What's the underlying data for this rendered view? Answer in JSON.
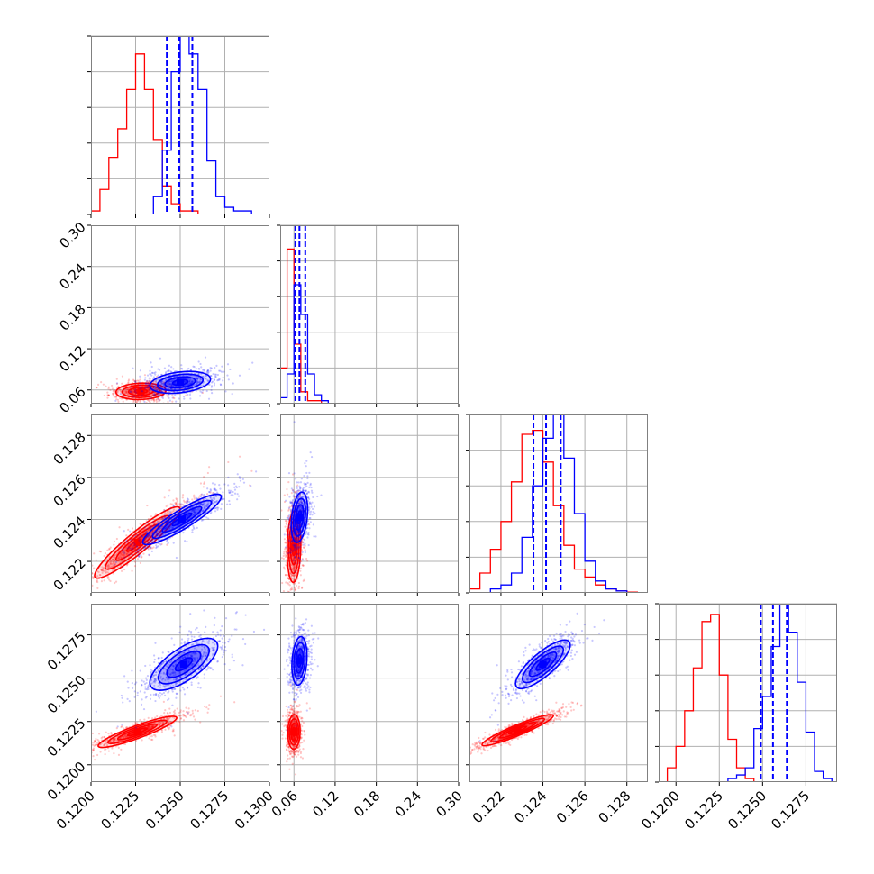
{
  "colors": {
    "red": "#ff0000",
    "blue": "#0000ff",
    "grid": "#b0b0b0",
    "frame": "#808080"
  },
  "chart_data": {
    "type": "scatter",
    "description_kind": "corner plot",
    "title": "",
    "n_params": 4,
    "grid": true,
    "series": [
      {
        "name": "",
        "color": "#ff0000",
        "quantile_lines": false
      },
      {
        "name": "",
        "color": "#0000ff",
        "quantile_lines": true
      }
    ],
    "params": [
      {
        "range": [
          0.12,
          0.13
        ],
        "ticks": [
          0.12,
          0.1225,
          0.125,
          0.1275,
          0.13
        ],
        "tick_labels": [
          "0.1200",
          "0.1225",
          "0.1250",
          "0.1275",
          "0.1300"
        ]
      },
      {
        "range": [
          0.04,
          0.3
        ],
        "ticks": [
          0.06,
          0.12,
          0.18,
          0.24,
          0.3
        ],
        "tick_labels": [
          "0.06",
          "0.12",
          "0.18",
          "0.24",
          "0.30"
        ]
      },
      {
        "range": [
          0.1205,
          0.129
        ],
        "ticks": [
          0.122,
          0.124,
          0.126,
          0.128
        ],
        "tick_labels": [
          "0.122",
          "0.124",
          "0.126",
          "0.128"
        ]
      },
      {
        "range": [
          0.119,
          0.1293
        ],
        "ticks": [
          0.12,
          0.1225,
          0.125,
          0.1275
        ],
        "tick_labels": [
          "0.1200",
          "0.1225",
          "0.1250",
          "0.1275"
        ]
      }
    ],
    "diagonal_histograms": [
      {
        "param": 0,
        "ylim_max": 50,
        "red": {
          "edges": [
            0.12,
            0.1205,
            0.121,
            0.1215,
            0.122,
            0.1225,
            0.123,
            0.1235,
            0.124,
            0.1245,
            0.125,
            0.1255,
            0.126,
            0.1265
          ],
          "counts": [
            1,
            7,
            16,
            24,
            35,
            45,
            35,
            21,
            8,
            3,
            1,
            1,
            0
          ]
        },
        "blue": {
          "edges": [
            0.1235,
            0.124,
            0.1245,
            0.125,
            0.1255,
            0.126,
            0.1265,
            0.127,
            0.1275,
            0.128,
            0.1285,
            0.129,
            0.1295
          ],
          "counts": [
            5,
            18,
            40,
            52,
            45,
            35,
            15,
            5,
            2,
            1,
            1,
            0
          ]
        },
        "blue_quantiles": [
          0.12425,
          0.12495,
          0.12568
        ]
      },
      {
        "param": 1,
        "ylim_max": 60,
        "red": {
          "edges": [
            0.04,
            0.05,
            0.06,
            0.07,
            0.08,
            0.09,
            0.1,
            0.11,
            0.12,
            0.13
          ],
          "counts": [
            12,
            52,
            20,
            4,
            1,
            1,
            0,
            0,
            0
          ]
        },
        "blue": {
          "edges": [
            0.04,
            0.05,
            0.06,
            0.07,
            0.08,
            0.09,
            0.1,
            0.11,
            0.12,
            0.13
          ],
          "counts": [
            2,
            10,
            40,
            30,
            10,
            3,
            1,
            0,
            0
          ]
        },
        "blue_quantiles": [
          0.062,
          0.068,
          0.0765
        ]
      },
      {
        "param": 2,
        "ylim_max": 45,
        "red": {
          "edges": [
            0.1205,
            0.121,
            0.1215,
            0.122,
            0.1225,
            0.123,
            0.1235,
            0.124,
            0.1245,
            0.125,
            0.1255,
            0.126,
            0.1265,
            0.127,
            0.1275,
            0.128,
            0.1285
          ],
          "counts": [
            1,
            5,
            11,
            18,
            28,
            40,
            41,
            33,
            22,
            12,
            6,
            4,
            2,
            1,
            0.5,
            0.2
          ]
        },
        "blue": {
          "edges": [
            0.1205,
            0.121,
            0.1215,
            0.122,
            0.1225,
            0.123,
            0.1235,
            0.124,
            0.1245,
            0.125,
            0.1255,
            0.126,
            0.1265,
            0.127,
            0.1275,
            0.128,
            0.1285
          ],
          "counts": [
            0,
            0,
            1,
            2,
            5,
            14,
            27,
            39,
            46,
            34,
            20,
            8,
            3,
            1,
            0.5,
            0
          ]
        },
        "blue_quantiles": [
          0.12355,
          0.12415,
          0.12485
        ]
      },
      {
        "param": 3,
        "ylim_max": 50,
        "red": {
          "edges": [
            0.1195,
            0.12,
            0.1205,
            0.121,
            0.1215,
            0.122,
            0.1225,
            0.123,
            0.1235,
            0.124,
            0.1245,
            0.125,
            0.1255
          ],
          "counts": [
            4,
            10,
            20,
            32,
            45,
            47,
            30,
            12,
            4,
            1,
            0,
            0
          ]
        },
        "blue": {
          "edges": [
            0.123,
            0.1235,
            0.124,
            0.1245,
            0.125,
            0.1255,
            0.126,
            0.1265,
            0.127,
            0.1275,
            0.128,
            0.1285,
            0.129
          ],
          "counts": [
            1,
            2,
            4,
            15,
            24,
            38,
            50,
            42,
            28,
            14,
            3,
            1
          ]
        },
        "blue_quantiles": [
          0.1249,
          0.1256,
          0.1264
        ]
      }
    ],
    "pair_contours": [
      {
        "x_param": 0,
        "y_param": 1,
        "red": {
          "center": [
            0.1228,
            0.058
          ],
          "sd": [
            0.0007,
            0.006
          ],
          "corr": 0.1
        },
        "blue": {
          "center": [
            0.125,
            0.071
          ],
          "sd": [
            0.00085,
            0.008
          ],
          "corr": 0.3
        }
      },
      {
        "x_param": 0,
        "y_param": 2,
        "red": {
          "center": [
            0.1226,
            0.1229
          ],
          "sd": [
            0.0012,
            0.00085
          ],
          "corr": 0.93
        },
        "blue": {
          "center": [
            0.1251,
            0.124
          ],
          "sd": [
            0.0011,
            0.0006
          ],
          "corr": 0.9
        }
      },
      {
        "x_param": 1,
        "y_param": 2,
        "red": {
          "center": [
            0.06,
            0.1227
          ],
          "sd": [
            0.005,
            0.00085
          ],
          "corr": 0.1
        },
        "blue": {
          "center": [
            0.068,
            0.1241
          ],
          "sd": [
            0.006,
            0.0006
          ],
          "corr": 0.3
        }
      },
      {
        "x_param": 0,
        "y_param": 3,
        "red": {
          "center": [
            0.1226,
            0.1219
          ],
          "sd": [
            0.0011,
            0.00045
          ],
          "corr": 0.9
        },
        "blue": {
          "center": [
            0.1252,
            0.1258
          ],
          "sd": [
            0.00095,
            0.00075
          ],
          "corr": 0.7
        }
      },
      {
        "x_param": 1,
        "y_param": 3,
        "red": {
          "center": [
            0.06,
            0.1219
          ],
          "sd": [
            0.0045,
            0.0005
          ],
          "corr": 0.05
        },
        "blue": {
          "center": [
            0.068,
            0.126
          ],
          "sd": [
            0.0055,
            0.0007
          ],
          "corr": 0.2
        }
      },
      {
        "x_param": 2,
        "y_param": 3,
        "red": {
          "center": [
            0.1228,
            0.122
          ],
          "sd": [
            0.00085,
            0.00045
          ],
          "corr": 0.93
        },
        "blue": {
          "center": [
            0.124,
            0.1258
          ],
          "sd": [
            0.00065,
            0.0007
          ],
          "corr": 0.8
        }
      }
    ]
  }
}
